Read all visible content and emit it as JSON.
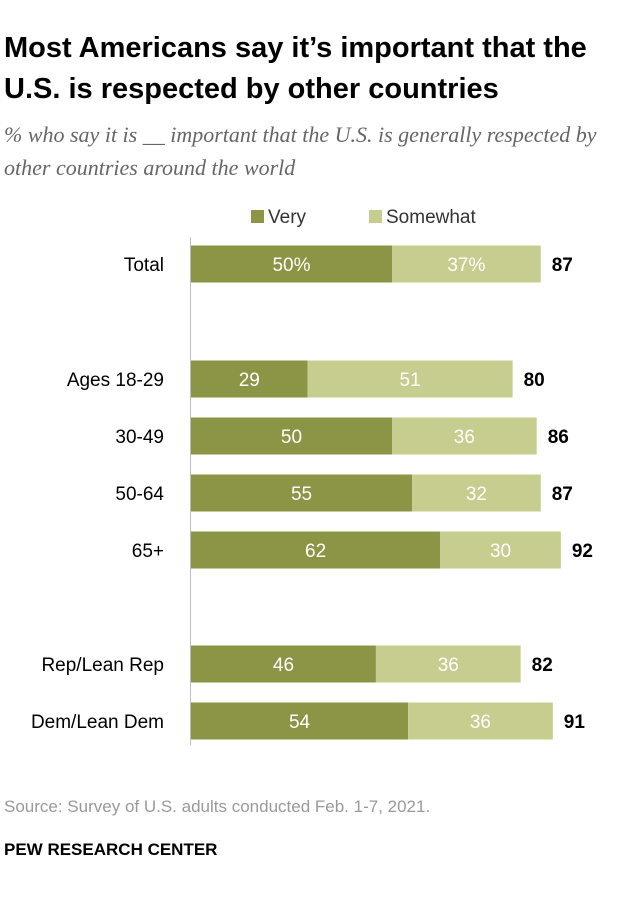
{
  "title": "Most Americans say it’s important that the U.S. is respected by other countries",
  "subtitle": "% who say it is __ important that the U.S. is generally respected by other countries around the world",
  "chart_data": {
    "type": "bar",
    "orientation": "horizontal",
    "stacked": true,
    "categories": [
      "Total",
      "Ages 18-29",
      "30-49",
      "50-64",
      "65+",
      "Rep/Lean Rep",
      "Dem/Lean Dem"
    ],
    "series": [
      {
        "name": "Very",
        "color": "#8c9445",
        "values": [
          50,
          29,
          50,
          55,
          62,
          46,
          54
        ],
        "labels": [
          "50%",
          "29",
          "50",
          "55",
          "62",
          "46",
          "54"
        ]
      },
      {
        "name": "Somewhat",
        "color": "#c7cc8f",
        "values": [
          37,
          51,
          36,
          32,
          30,
          36,
          36
        ],
        "labels": [
          "37%",
          "51",
          "36",
          "32",
          "30",
          "36",
          "36"
        ]
      }
    ],
    "net_values": [
      87,
      80,
      86,
      87,
      92,
      82,
      91
    ],
    "xlim": [
      0,
      100
    ],
    "legend_position": "top",
    "grid": false
  },
  "source": "Source: Survey of U.S. adults conducted Feb. 1-7, 2021.",
  "organization": "PEW RESEARCH CENTER"
}
